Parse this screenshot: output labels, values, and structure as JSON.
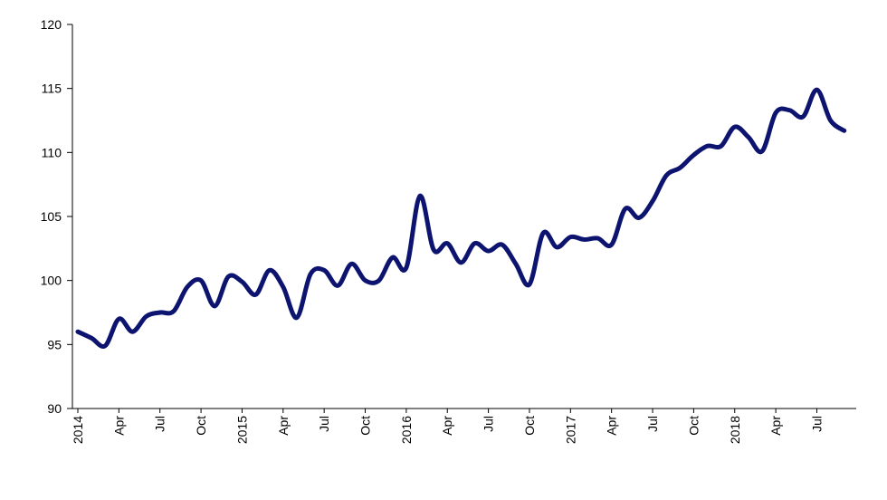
{
  "chart_data": {
    "type": "line",
    "title": "",
    "xlabel": "",
    "ylabel": "",
    "ylim": [
      90,
      120
    ],
    "yticks": [
      90,
      95,
      100,
      105,
      110,
      115,
      120
    ],
    "grid": false,
    "legend": "none",
    "line_color": "#0d1470",
    "x_ticks": [
      {
        "label": "2014",
        "index": 0
      },
      {
        "label": "Apr",
        "index": 3
      },
      {
        "label": "Jul",
        "index": 6
      },
      {
        "label": "Oct",
        "index": 9
      },
      {
        "label": "2015",
        "index": 12
      },
      {
        "label": "Apr",
        "index": 15
      },
      {
        "label": "Jul",
        "index": 18
      },
      {
        "label": "Oct",
        "index": 21
      },
      {
        "label": "2016",
        "index": 24
      },
      {
        "label": "Apr",
        "index": 27
      },
      {
        "label": "Jul",
        "index": 30
      },
      {
        "label": "Oct",
        "index": 33
      },
      {
        "label": "2017",
        "index": 36
      },
      {
        "label": "Apr",
        "index": 39
      },
      {
        "label": "Jul",
        "index": 42
      },
      {
        "label": "Oct",
        "index": 45
      },
      {
        "label": "2018",
        "index": 48
      },
      {
        "label": "Apr",
        "index": 51
      },
      {
        "label": "Jul",
        "index": 54
      }
    ],
    "x": [
      "2014-01",
      "2014-02",
      "2014-03",
      "2014-04",
      "2014-05",
      "2014-06",
      "2014-07",
      "2014-08",
      "2014-09",
      "2014-10",
      "2014-11",
      "2014-12",
      "2015-01",
      "2015-02",
      "2015-03",
      "2015-04",
      "2015-05",
      "2015-06",
      "2015-07",
      "2015-08",
      "2015-09",
      "2015-10",
      "2015-11",
      "2015-12",
      "2016-01",
      "2016-02",
      "2016-03",
      "2016-04",
      "2016-05",
      "2016-06",
      "2016-07",
      "2016-08",
      "2016-09",
      "2016-10",
      "2016-11",
      "2016-12",
      "2017-01",
      "2017-02",
      "2017-03",
      "2017-04",
      "2017-05",
      "2017-06",
      "2017-07",
      "2017-08",
      "2017-09",
      "2017-10",
      "2017-11",
      "2017-12",
      "2018-01",
      "2018-02",
      "2018-03",
      "2018-04",
      "2018-05",
      "2018-06",
      "2018-07",
      "2018-08",
      "2018-09"
    ],
    "series": [
      {
        "name": "",
        "values": [
          96.0,
          95.5,
          94.9,
          97.0,
          96.0,
          97.2,
          97.5,
          97.6,
          99.5,
          100.0,
          98.0,
          100.3,
          99.9,
          98.9,
          100.8,
          99.5,
          97.1,
          100.5,
          100.8,
          99.6,
          101.3,
          100.0,
          100.0,
          101.8,
          101.0,
          106.6,
          102.4,
          102.9,
          101.4,
          102.9,
          102.3,
          102.8,
          101.3,
          99.7,
          103.7,
          102.6,
          103.4,
          103.2,
          103.3,
          102.8,
          105.6,
          104.9,
          106.2,
          108.2,
          108.8,
          109.8,
          110.5,
          110.5,
          112.0,
          111.2,
          110.1,
          113.1,
          113.3,
          112.8,
          114.9,
          112.5,
          111.7
        ]
      }
    ]
  }
}
